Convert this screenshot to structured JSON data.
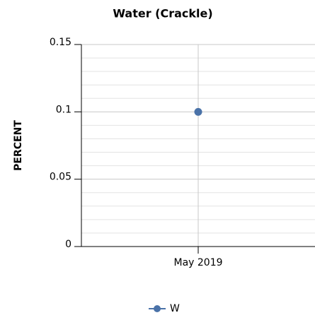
{
  "chart_data": {
    "type": "line",
    "title": "Water (Crackle)",
    "y_label": "PERCENT",
    "categories": [
      "May 2019"
    ],
    "series": [
      {
        "name": "W",
        "color": "#4a72a8",
        "values": [
          0.1
        ]
      }
    ],
    "ylim": [
      0,
      0.15
    ],
    "yticks": [
      0,
      0.05,
      0.1,
      0.15
    ],
    "grid": true,
    "legend": "bottom"
  }
}
